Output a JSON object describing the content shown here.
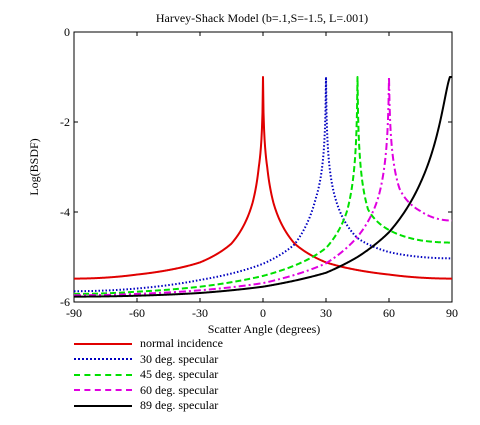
{
  "chart_data": {
    "type": "line",
    "title": "Harvey-Shack Model (b=.1,S=-1.5, L=.001)",
    "xlabel": "Scatter Angle (degrees)",
    "ylabel": "Log(BSDF)",
    "xlim": [
      -90,
      90
    ],
    "ylim": [
      -6,
      0
    ],
    "xticks": [
      -90,
      -60,
      -30,
      0,
      30,
      60,
      90
    ],
    "yticks": [
      0,
      -2,
      -4,
      -6
    ],
    "x_tick_labels": [
      "-90",
      "-60",
      "-30",
      "0",
      "30",
      "60",
      "90"
    ],
    "y_tick_labels": [
      "0",
      "-2",
      "-4",
      "-6"
    ],
    "grid": false,
    "legend_position": "below",
    "model": {
      "b": 0.1,
      "S": -1.5,
      "L": 0.001
    },
    "series": [
      {
        "name": "normal incidence",
        "specular_deg": 0,
        "color": "#e00000",
        "dash": "solid",
        "points": [
          [
            -90,
            -5.48
          ],
          [
            -60,
            -5.39
          ],
          [
            -30,
            -5.12
          ],
          [
            -15,
            -4.7
          ],
          [
            -5,
            -3.8
          ],
          [
            -2,
            -3.0
          ],
          [
            0,
            -1.0
          ],
          [
            2,
            -3.0
          ],
          [
            5,
            -3.8
          ],
          [
            15,
            -4.7
          ],
          [
            30,
            -5.12
          ],
          [
            60,
            -5.39
          ],
          [
            90,
            -5.48
          ]
        ]
      },
      {
        "name": "30 deg. specular",
        "specular_deg": 30,
        "color": "#0000c0",
        "dash": "dotted",
        "points": [
          [
            -90,
            -5.76
          ],
          [
            -60,
            -5.7
          ],
          [
            -30,
            -5.51
          ],
          [
            0,
            -5.15
          ],
          [
            15,
            -4.72
          ],
          [
            25,
            -3.72
          ],
          [
            30,
            -1.0
          ],
          [
            35,
            -3.78
          ],
          [
            45,
            -4.58
          ],
          [
            60,
            -4.89
          ],
          [
            90,
            -5.03
          ]
        ]
      },
      {
        "name": "45 deg. specular",
        "specular_deg": 45,
        "color": "#00e000",
        "dash": "dashed",
        "points": [
          [
            -90,
            -5.82
          ],
          [
            -60,
            -5.77
          ],
          [
            -30,
            -5.66
          ],
          [
            0,
            -5.42
          ],
          [
            30,
            -4.8
          ],
          [
            40,
            -3.98
          ],
          [
            45,
            -1.0
          ],
          [
            50,
            -3.94
          ],
          [
            60,
            -4.4
          ],
          [
            75,
            -4.63
          ],
          [
            90,
            -4.68
          ]
        ]
      },
      {
        "name": "60 deg. specular",
        "specular_deg": 60,
        "color": "#e000e0",
        "dash": "dashdot",
        "points": [
          [
            -90,
            -5.85
          ],
          [
            -60,
            -5.82
          ],
          [
            -30,
            -5.74
          ],
          [
            0,
            -5.58
          ],
          [
            30,
            -5.14
          ],
          [
            45,
            -4.55
          ],
          [
            55,
            -3.66
          ],
          [
            60,
            -1.0
          ],
          [
            65,
            -3.48
          ],
          [
            75,
            -3.98
          ],
          [
            90,
            -4.19
          ]
        ]
      },
      {
        "name": "89 deg. specular",
        "specular_deg": 89,
        "color": "#000000",
        "dash": "solid",
        "points": [
          [
            -90,
            -5.88
          ],
          [
            -60,
            -5.86
          ],
          [
            -30,
            -5.8
          ],
          [
            0,
            -5.66
          ],
          [
            30,
            -5.35
          ],
          [
            45,
            -5.0
          ],
          [
            60,
            -4.45
          ],
          [
            75,
            -3.35
          ],
          [
            85,
            -1.85
          ],
          [
            89,
            -1.0
          ],
          [
            90,
            -1.0
          ]
        ]
      }
    ]
  }
}
